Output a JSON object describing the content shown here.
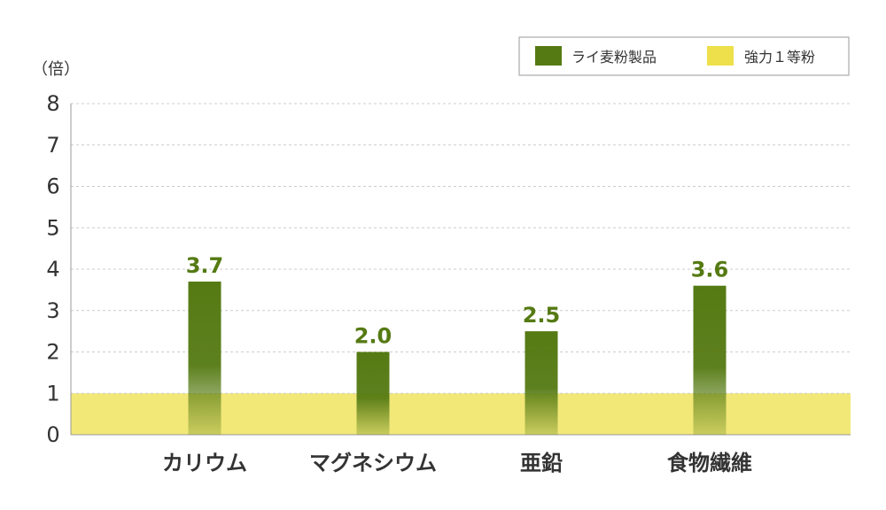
{
  "chart_data": {
    "type": "bar",
    "unit_label": "（倍）",
    "categories": [
      "カリウム",
      "マグネシウム",
      "亜鉛",
      "食物繊維"
    ],
    "series": [
      {
        "name": "ライ麦粉製品",
        "values": [
          3.7,
          2.0,
          2.5,
          3.6
        ],
        "labels": [
          "3.7",
          "2.0",
          "2.5",
          "3.6"
        ],
        "color": "#557a13"
      },
      {
        "name": "強力１等粉",
        "values": [
          1,
          1,
          1,
          1
        ],
        "color": "#ede04a"
      }
    ],
    "ylim": [
      0,
      8
    ],
    "yticks": [
      "0",
      "1",
      "2",
      "3",
      "4",
      "5",
      "6",
      "7",
      "8"
    ],
    "grid": true,
    "legend_position": "top-right",
    "colors": {
      "grid": "#cccccc",
      "axis": "#999999",
      "tick_label": "#333333",
      "category_label": "#333333",
      "data_label": "#557a13",
      "legend_border": "#999999"
    }
  }
}
